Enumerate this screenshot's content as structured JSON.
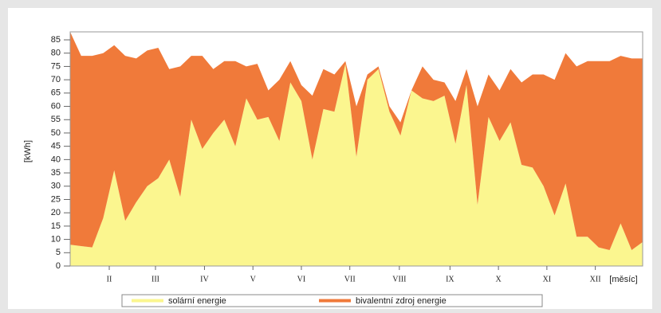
{
  "chart_data": {
    "type": "stacked-area",
    "y_label": "[kWh]",
    "x_label": "[měsíc]",
    "x": [
      1,
      2,
      3,
      4,
      5,
      6,
      7,
      8,
      9,
      10,
      11,
      12,
      13,
      14,
      15,
      16,
      17,
      18,
      19,
      20,
      21,
      22,
      23,
      24,
      25,
      26,
      27,
      28,
      29,
      30,
      31,
      32,
      33,
      34,
      35,
      36,
      37,
      38,
      39,
      40,
      41,
      42,
      43,
      44,
      45,
      46,
      47,
      48,
      49,
      50,
      51,
      52,
      53
    ],
    "xlim": [
      1,
      53
    ],
    "xticks": [
      {
        "value": 4.55,
        "label": "II"
      },
      {
        "value": 8.75,
        "label": "III"
      },
      {
        "value": 13.2,
        "label": "IV"
      },
      {
        "value": 17.6,
        "label": "V"
      },
      {
        "value": 22,
        "label": "VI"
      },
      {
        "value": 26.4,
        "label": "VII"
      },
      {
        "value": 30.9,
        "label": "VIII"
      },
      {
        "value": 35.5,
        "label": "IX"
      },
      {
        "value": 39.9,
        "label": "X"
      },
      {
        "value": 44.3,
        "label": "XI"
      },
      {
        "value": 48.7,
        "label": "XII"
      }
    ],
    "ylim": [
      0,
      88
    ],
    "yticks": [
      0,
      5,
      10,
      15,
      20,
      25,
      30,
      35,
      40,
      45,
      50,
      55,
      60,
      65,
      70,
      75,
      80,
      85
    ],
    "series": [
      {
        "name": "solární energie",
        "color": "#fbf68f",
        "values": [
          8,
          7.5,
          7,
          18,
          36,
          17,
          24,
          30,
          33,
          40,
          26,
          55,
          44,
          50,
          55,
          45,
          63,
          55,
          56,
          47,
          69,
          62,
          40,
          59,
          58,
          76,
          41,
          70,
          74,
          58,
          49,
          66,
          63,
          62,
          64,
          46,
          68,
          23,
          56,
          47,
          54,
          38,
          37,
          30,
          19,
          31,
          11,
          11,
          7,
          6,
          16,
          6,
          9
        ]
      },
      {
        "name": "bivalentní zdroj energie",
        "color": "#f07a3a",
        "values": [
          80,
          71.5,
          72,
          62,
          47,
          62,
          54,
          51,
          49,
          34,
          49,
          24,
          35,
          24,
          22,
          32,
          12,
          21,
          10,
          23,
          8,
          6,
          24,
          15,
          14,
          1,
          19,
          2,
          1,
          2,
          5,
          0,
          12,
          8,
          5,
          16,
          6,
          37,
          16,
          19,
          20,
          31,
          35,
          42,
          51,
          49,
          64,
          66,
          70,
          71,
          63,
          72,
          69
        ]
      }
    ]
  }
}
